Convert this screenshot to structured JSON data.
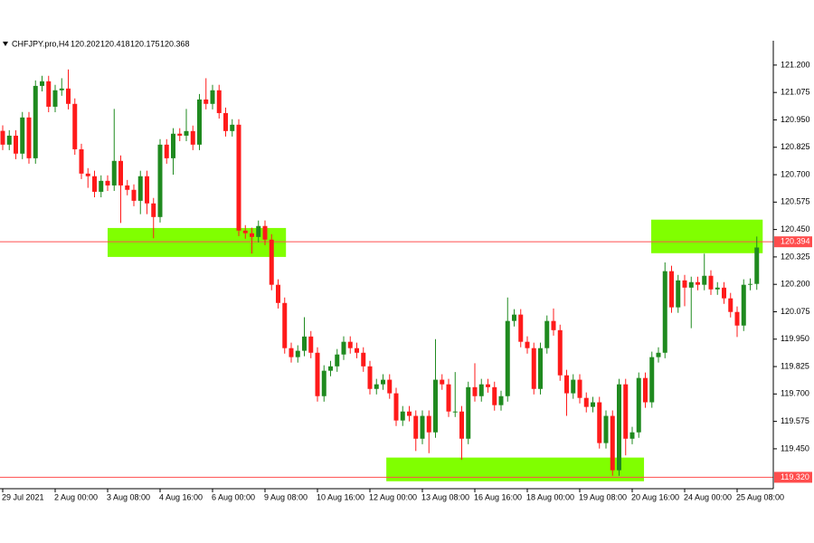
{
  "chart_data": {
    "type": "candlestick",
    "title": "CHFJPY.pro,H4",
    "bull_color": "#1f8a1f",
    "bear_color": "#ff1a1a",
    "zone_color": "#80ff00",
    "line_color": "#ff4d4d",
    "ylim": [
      119.268,
      121.311
    ],
    "yticks": [
      {
        "value": 121.2,
        "label": "121.200"
      },
      {
        "value": 121.075,
        "label": "121.075"
      },
      {
        "value": 120.95,
        "label": "120.950"
      },
      {
        "value": 120.825,
        "label": "120.825"
      },
      {
        "value": 120.7,
        "label": "120.700"
      },
      {
        "value": 120.575,
        "label": "120.575"
      },
      {
        "value": 120.45,
        "label": "120.450"
      },
      {
        "value": 120.325,
        "label": "120.325"
      },
      {
        "value": 120.2,
        "label": "120.200"
      },
      {
        "value": 120.075,
        "label": "120.075"
      },
      {
        "value": 119.95,
        "label": "119.950"
      },
      {
        "value": 119.825,
        "label": "119.825"
      },
      {
        "value": 119.7,
        "label": "119.700"
      },
      {
        "value": 119.575,
        "label": "119.575"
      },
      {
        "value": 119.45,
        "label": "119.450"
      }
    ],
    "xticks": [
      {
        "value": 0,
        "label": "29 Jul 2021"
      },
      {
        "value": 8,
        "label": "2 Aug 00:00"
      },
      {
        "value": 16,
        "label": "3 Aug 08:00"
      },
      {
        "value": 24,
        "label": "4 Aug 16:00"
      },
      {
        "value": 32,
        "label": "6 Aug 00:00"
      },
      {
        "value": 40,
        "label": "9 Aug 08:00"
      },
      {
        "value": 48,
        "label": "10 Aug 16:00"
      },
      {
        "value": 56,
        "label": "12 Aug 00:00"
      },
      {
        "value": 64,
        "label": "13 Aug 08:00"
      },
      {
        "value": 72,
        "label": "16 Aug 16:00"
      },
      {
        "value": 80,
        "label": "18 Aug 00:00"
      },
      {
        "value": 88,
        "label": "19 Aug 08:00"
      },
      {
        "value": 96,
        "label": "20 Aug 16:00"
      },
      {
        "value": 104,
        "label": "24 Aug 00:00"
      },
      {
        "value": 112,
        "label": "25 Aug 08:00"
      }
    ],
    "hlines": [
      {
        "value": 120.394,
        "label": "120.394"
      },
      {
        "value": 119.32,
        "label": "119.320"
      }
    ],
    "zones": [
      {
        "from": 16,
        "to": 43.2,
        "low": 120.325,
        "high": 120.457
      },
      {
        "from": 58.5,
        "to": 97.8,
        "low": 119.302,
        "high": 119.41
      },
      {
        "from": 98.9,
        "to": 115.9,
        "low": 120.342,
        "high": 120.495
      }
    ],
    "open": [
      120.9,
      120.837,
      120.878,
      120.796,
      120.961,
      120.775,
      121.105,
      121.126,
      121.01,
      121.085,
      121.093,
      121.023,
      120.816,
      120.705,
      120.693,
      120.622,
      120.672,
      120.651,
      120.763,
      120.651,
      120.631,
      120.581,
      120.693,
      120.569,
      120.507,
      120.837,
      120.775,
      120.887,
      120.878,
      120.899,
      120.837,
      121.043,
      121.023,
      121.085,
      120.981,
      120.899,
      120.928,
      120.445,
      120.433,
      120.416,
      120.466,
      120.404,
      120.198,
      120.115,
      119.909,
      119.868,
      119.897,
      119.962,
      119.888,
      119.69,
      119.806,
      119.826,
      119.88,
      119.938,
      119.909,
      119.888,
      119.826,
      119.723,
      119.744,
      119.765,
      119.703,
      119.579,
      119.62,
      119.6,
      119.496,
      119.6,
      119.525,
      119.765,
      119.744,
      119.62,
      119.62,
      119.496,
      119.731,
      119.69,
      119.744,
      119.731,
      119.649,
      119.69,
      120.033,
      120.062,
      119.938,
      119.909,
      119.723,
      119.909,
      120.033,
      119.991,
      119.785,
      119.703,
      119.765,
      119.682,
      119.641,
      119.662,
      119.476,
      119.6,
      119.352,
      119.744,
      119.496,
      119.525,
      119.773,
      119.662,
      119.868,
      119.888,
      120.26,
      120.095,
      120.218,
      120.185,
      120.21,
      120.198,
      120.239,
      120.177,
      120.185,
      120.136,
      120.074,
      120.012,
      120.198,
      120.202
    ],
    "high": [
      120.925,
      120.903,
      120.903,
      120.986,
      120.986,
      121.13,
      121.151,
      121.151,
      121.11,
      121.14,
      121.18,
      121.048,
      120.841,
      120.73,
      120.718,
      120.697,
      120.697,
      121.0,
      120.788,
      120.676,
      120.656,
      120.718,
      120.718,
      120.594,
      120.862,
      120.862,
      120.912,
      120.912,
      121.0,
      120.924,
      121.068,
      121.14,
      121.11,
      121.11,
      121.006,
      120.953,
      120.953,
      120.47,
      120.458,
      120.491,
      120.491,
      120.429,
      120.223,
      120.14,
      119.934,
      119.922,
      120.05,
      119.987,
      119.913,
      119.831,
      119.851,
      119.905,
      119.963,
      119.963,
      119.934,
      119.913,
      119.851,
      119.769,
      119.79,
      119.79,
      119.728,
      119.645,
      119.645,
      119.625,
      119.625,
      119.625,
      119.95,
      119.79,
      119.769,
      119.8,
      119.645,
      119.756,
      119.84,
      119.769,
      119.769,
      119.756,
      119.715,
      120.14,
      120.087,
      120.087,
      119.963,
      119.934,
      119.934,
      120.058,
      120.09,
      120.016,
      119.81,
      119.79,
      119.79,
      119.707,
      119.687,
      119.687,
      119.625,
      119.625,
      119.769,
      119.769,
      119.55,
      119.798,
      119.798,
      119.893,
      119.913,
      120.3,
      120.285,
      120.243,
      120.243,
      120.235,
      120.235,
      120.34,
      120.264,
      120.21,
      120.21,
      120.161,
      120.099,
      120.223,
      120.227,
      120.418
    ],
    "low": [
      120.812,
      120.812,
      120.771,
      120.771,
      120.75,
      120.75,
      121.08,
      120.985,
      120.985,
      121.06,
      120.998,
      120.791,
      120.68,
      120.64,
      120.597,
      120.597,
      120.626,
      120.626,
      120.48,
      120.606,
      120.556,
      120.52,
      120.52,
      120.41,
      120.482,
      120.75,
      120.7,
      120.853,
      120.853,
      120.812,
      120.812,
      120.998,
      120.998,
      120.956,
      120.874,
      120.874,
      120.42,
      120.408,
      120.34,
      120.391,
      120.379,
      120.173,
      120.09,
      119.884,
      119.843,
      119.843,
      119.872,
      119.863,
      119.665,
      119.665,
      119.781,
      119.801,
      119.855,
      119.884,
      119.863,
      119.801,
      119.698,
      119.698,
      119.719,
      119.678,
      119.554,
      119.554,
      119.575,
      119.44,
      119.471,
      119.43,
      119.5,
      119.719,
      119.595,
      119.595,
      119.4,
      119.471,
      119.665,
      119.665,
      119.706,
      119.624,
      119.624,
      119.665,
      120.008,
      119.913,
      119.884,
      119.698,
      119.698,
      119.884,
      119.966,
      119.76,
      119.6,
      119.678,
      119.657,
      119.616,
      119.616,
      119.451,
      119.451,
      119.327,
      119.327,
      119.42,
      119.471,
      119.5,
      119.637,
      119.637,
      119.843,
      119.863,
      120.07,
      120.07,
      120.1,
      120.0,
      120.173,
      120.173,
      120.152,
      120.152,
      120.111,
      120.049,
      119.96,
      119.987,
      120.173,
      120.175
    ],
    "close": [
      120.837,
      120.878,
      120.796,
      120.961,
      120.775,
      121.105,
      121.126,
      121.01,
      121.085,
      121.093,
      121.023,
      120.816,
      120.705,
      120.693,
      120.622,
      120.672,
      120.651,
      120.763,
      120.651,
      120.631,
      120.581,
      120.693,
      120.569,
      120.507,
      120.837,
      120.775,
      120.887,
      120.878,
      120.899,
      120.837,
      121.043,
      121.023,
      121.085,
      120.981,
      120.899,
      120.928,
      120.445,
      120.433,
      120.416,
      120.466,
      120.404,
      120.198,
      120.115,
      119.909,
      119.868,
      119.897,
      119.962,
      119.888,
      119.69,
      119.806,
      119.826,
      119.88,
      119.938,
      119.909,
      119.888,
      119.826,
      119.723,
      119.744,
      119.765,
      119.703,
      119.579,
      119.62,
      119.6,
      119.496,
      119.6,
      119.525,
      119.765,
      119.744,
      119.62,
      119.62,
      119.496,
      119.731,
      119.69,
      119.744,
      119.731,
      119.649,
      119.69,
      120.033,
      120.062,
      119.938,
      119.909,
      119.723,
      119.909,
      120.033,
      119.991,
      119.785,
      119.703,
      119.765,
      119.682,
      119.641,
      119.662,
      119.476,
      119.6,
      119.352,
      119.744,
      119.496,
      119.525,
      119.773,
      119.662,
      119.868,
      119.888,
      120.26,
      120.095,
      120.218,
      120.185,
      120.21,
      120.198,
      120.239,
      120.177,
      120.185,
      120.136,
      120.074,
      120.012,
      120.198,
      120.202,
      120.368
    ]
  }
}
